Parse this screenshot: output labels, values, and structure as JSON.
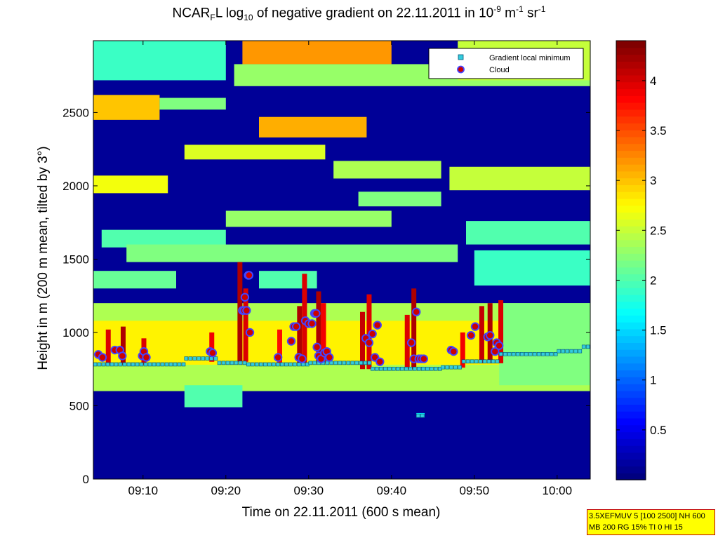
{
  "chart_data": {
    "type": "heatmap",
    "title": {
      "parts": [
        {
          "t": "NCAR",
          "s": "n"
        },
        {
          "t": "F",
          "s": "sub"
        },
        {
          "t": "L log",
          "s": "n"
        },
        {
          "t": "10",
          "s": "sub"
        },
        {
          "t": " of negative gradient on 22.11.2011 in 10",
          "s": "n"
        },
        {
          "t": "-9",
          "s": "sup"
        },
        {
          "t": " m",
          "s": "n"
        },
        {
          "t": "-1",
          "s": "sup"
        },
        {
          "t": " sr",
          "s": "n"
        },
        {
          "t": "-1",
          "s": "sup"
        }
      ]
    },
    "xlabel": "Time on 22.11.2011 (600 s mean)",
    "ylabel": "Height in m (200 m mean, tilted by 3°)",
    "xlim_minutes": [
      544,
      604
    ],
    "ylim": [
      0,
      2990
    ],
    "xticks": [
      {
        "value": 550,
        "label": "09:10"
      },
      {
        "value": 560,
        "label": "09:20"
      },
      {
        "value": 570,
        "label": "09:30"
      },
      {
        "value": 580,
        "label": "09:40"
      },
      {
        "value": 590,
        "label": "09:50"
      },
      {
        "value": 600,
        "label": "10:00"
      }
    ],
    "yticks": [
      0,
      500,
      1000,
      1500,
      2000,
      2500
    ],
    "colorbar": {
      "range": [
        0,
        4.4
      ],
      "ticks": [
        0.5,
        1,
        1.5,
        2,
        2.5,
        3,
        3.5,
        4
      ],
      "colormap": "jet"
    },
    "legend": {
      "position": "top-right",
      "entries": [
        {
          "label": "Gradient local minimum",
          "marker": "square",
          "color": "#33ccdd"
        },
        {
          "label": "Cloud",
          "marker": "circle",
          "color": "#cc0000"
        }
      ]
    },
    "background_value": 0.1,
    "layers": [
      {
        "x0": 544,
        "x1": 552,
        "y0": 2450,
        "y1": 2620,
        "v": 3.0
      },
      {
        "x0": 552,
        "x1": 560,
        "y0": 2520,
        "y1": 2600,
        "v": 2.2
      },
      {
        "x0": 564,
        "x1": 577,
        "y0": 2330,
        "y1": 2470,
        "v": 3.1
      },
      {
        "x0": 561,
        "x1": 604,
        "y0": 2680,
        "y1": 2830,
        "v": 2.3
      },
      {
        "x0": 562,
        "x1": 580,
        "y0": 2830,
        "y1": 2990,
        "v": 3.2
      },
      {
        "x0": 588,
        "x1": 604,
        "y0": 2720,
        "y1": 2990,
        "v": 2.5
      },
      {
        "x0": 544,
        "x1": 560,
        "y0": 2720,
        "y1": 2990,
        "v": 1.9
      },
      {
        "x0": 544,
        "x1": 553,
        "y0": 1950,
        "y1": 2070,
        "v": 2.7
      },
      {
        "x0": 555,
        "x1": 572,
        "y0": 2180,
        "y1": 2280,
        "v": 2.6
      },
      {
        "x0": 573,
        "x1": 586,
        "y0": 2050,
        "y1": 2170,
        "v": 2.4
      },
      {
        "x0": 587,
        "x1": 604,
        "y0": 1970,
        "y1": 2130,
        "v": 2.5
      },
      {
        "x0": 560,
        "x1": 580,
        "y0": 1720,
        "y1": 1830,
        "v": 2.3
      },
      {
        "x0": 576,
        "x1": 586,
        "y0": 1860,
        "y1": 1960,
        "v": 2.2
      },
      {
        "x0": 545,
        "x1": 560,
        "y0": 1580,
        "y1": 1700,
        "v": 2.0
      },
      {
        "x0": 548,
        "x1": 588,
        "y0": 1480,
        "y1": 1600,
        "v": 2.2
      },
      {
        "x0": 589,
        "x1": 604,
        "y0": 1600,
        "y1": 1760,
        "v": 2.0
      },
      {
        "x0": 590,
        "x1": 604,
        "y0": 1320,
        "y1": 1560,
        "v": 1.9
      },
      {
        "x0": 544,
        "x1": 554,
        "y0": 1300,
        "y1": 1420,
        "v": 2.1
      },
      {
        "x0": 564,
        "x1": 571,
        "y0": 1300,
        "y1": 1420,
        "v": 2.0
      },
      {
        "x0": 544,
        "x1": 604,
        "y0": 600,
        "y1": 1200,
        "v": 2.4
      },
      {
        "x0": 544,
        "x1": 604,
        "y0": 780,
        "y1": 1080,
        "v": 2.8
      },
      {
        "x0": 555,
        "x1": 562,
        "y0": 490,
        "y1": 640,
        "v": 2.0
      },
      {
        "x0": 593,
        "x1": 604,
        "y0": 640,
        "y1": 1200,
        "v": 2.2
      },
      {
        "x0": 583,
        "x1": 584,
        "y0": 420,
        "y1": 450,
        "v": 1.6
      }
    ],
    "plumes": [
      {
        "x": 545.8,
        "y0": 780,
        "y1": 1020,
        "v": 4.0
      },
      {
        "x": 547.6,
        "y0": 780,
        "y1": 1040,
        "v": 4.2
      },
      {
        "x": 550.1,
        "y0": 780,
        "y1": 960,
        "v": 4.0
      },
      {
        "x": 558.3,
        "y0": 800,
        "y1": 1000,
        "v": 3.9
      },
      {
        "x": 561.7,
        "y0": 800,
        "y1": 1480,
        "v": 4.2
      },
      {
        "x": 562.4,
        "y0": 800,
        "y1": 1300,
        "v": 4.0
      },
      {
        "x": 566.5,
        "y0": 790,
        "y1": 1020,
        "v": 3.8
      },
      {
        "x": 568.9,
        "y0": 790,
        "y1": 1180,
        "v": 4.2
      },
      {
        "x": 569.5,
        "y0": 790,
        "y1": 1400,
        "v": 4.0
      },
      {
        "x": 571.2,
        "y0": 790,
        "y1": 1280,
        "v": 4.2
      },
      {
        "x": 571.8,
        "y0": 790,
        "y1": 1200,
        "v": 3.9
      },
      {
        "x": 576.5,
        "y0": 750,
        "y1": 1140,
        "v": 4.1
      },
      {
        "x": 577.3,
        "y0": 750,
        "y1": 1260,
        "v": 4.0
      },
      {
        "x": 581.9,
        "y0": 750,
        "y1": 1120,
        "v": 4.0
      },
      {
        "x": 582.7,
        "y0": 750,
        "y1": 1300,
        "v": 4.2
      },
      {
        "x": 588.6,
        "y0": 760,
        "y1": 1000,
        "v": 3.9
      },
      {
        "x": 590.9,
        "y0": 790,
        "y1": 1180,
        "v": 4.1
      },
      {
        "x": 591.9,
        "y0": 790,
        "y1": 1200,
        "v": 4.2
      },
      {
        "x": 593.2,
        "y0": 790,
        "y1": 1220,
        "v": 4.0
      }
    ],
    "gradient_min_series": [
      {
        "x0": 544,
        "x1": 555,
        "y": 780
      },
      {
        "x0": 555,
        "x1": 559,
        "y": 820
      },
      {
        "x0": 559,
        "x1": 562.5,
        "y": 790
      },
      {
        "x0": 562.5,
        "x1": 570,
        "y": 780
      },
      {
        "x0": 570,
        "x1": 577.5,
        "y": 790
      },
      {
        "x0": 577.5,
        "x1": 586,
        "y": 750
      },
      {
        "x0": 586,
        "x1": 588.5,
        "y": 760
      },
      {
        "x0": 588.5,
        "x1": 593,
        "y": 800
      },
      {
        "x0": 593,
        "x1": 600,
        "y": 850
      },
      {
        "x0": 600,
        "x1": 603,
        "y": 870
      },
      {
        "x0": 603,
        "x1": 603.8,
        "y": 900
      },
      {
        "x0": 583,
        "x1": 584,
        "y": 430
      }
    ],
    "cloud_points": [
      [
        544.6,
        850
      ],
      [
        545.1,
        830
      ],
      [
        546.6,
        880
      ],
      [
        547.2,
        880
      ],
      [
        547.5,
        840
      ],
      [
        549.9,
        840
      ],
      [
        550.1,
        870
      ],
      [
        550.4,
        830
      ],
      [
        558.1,
        870
      ],
      [
        558.4,
        860
      ],
      [
        562.0,
        1150
      ],
      [
        562.2,
        1150
      ],
      [
        562.3,
        1240
      ],
      [
        562.5,
        1150
      ],
      [
        562.7,
        1390
      ],
      [
        562.8,
        1390
      ],
      [
        562.9,
        1000
      ],
      [
        566.3,
        830
      ],
      [
        567.9,
        940
      ],
      [
        568.2,
        1040
      ],
      [
        568.5,
        1040
      ],
      [
        568.8,
        830
      ],
      [
        569.2,
        820
      ],
      [
        569.6,
        1080
      ],
      [
        570.0,
        1060
      ],
      [
        570.4,
        1060
      ],
      [
        570.7,
        1130
      ],
      [
        570.9,
        1130
      ],
      [
        571.0,
        900
      ],
      [
        571.2,
        840
      ],
      [
        571.5,
        820
      ],
      [
        571.9,
        860
      ],
      [
        572.2,
        870
      ],
      [
        572.5,
        830
      ],
      [
        576.9,
        960
      ],
      [
        577.3,
        930
      ],
      [
        577.7,
        990
      ],
      [
        578.0,
        830
      ],
      [
        578.3,
        1050
      ],
      [
        578.6,
        800
      ],
      [
        582.4,
        930
      ],
      [
        582.7,
        820
      ],
      [
        583.0,
        1140
      ],
      [
        583.3,
        820
      ],
      [
        583.6,
        820
      ],
      [
        583.9,
        820
      ],
      [
        587.2,
        880
      ],
      [
        587.5,
        870
      ],
      [
        589.6,
        980
      ],
      [
        590.1,
        1040
      ],
      [
        591.6,
        970
      ],
      [
        591.9,
        980
      ],
      [
        592.5,
        870
      ],
      [
        592.7,
        930
      ],
      [
        593.0,
        910
      ]
    ]
  },
  "infobox": {
    "line1": "3.5XEFMUV 5 [100 2500] NH 600",
    "line2": "MB 200 RG 15% TI 0 HI 15"
  }
}
